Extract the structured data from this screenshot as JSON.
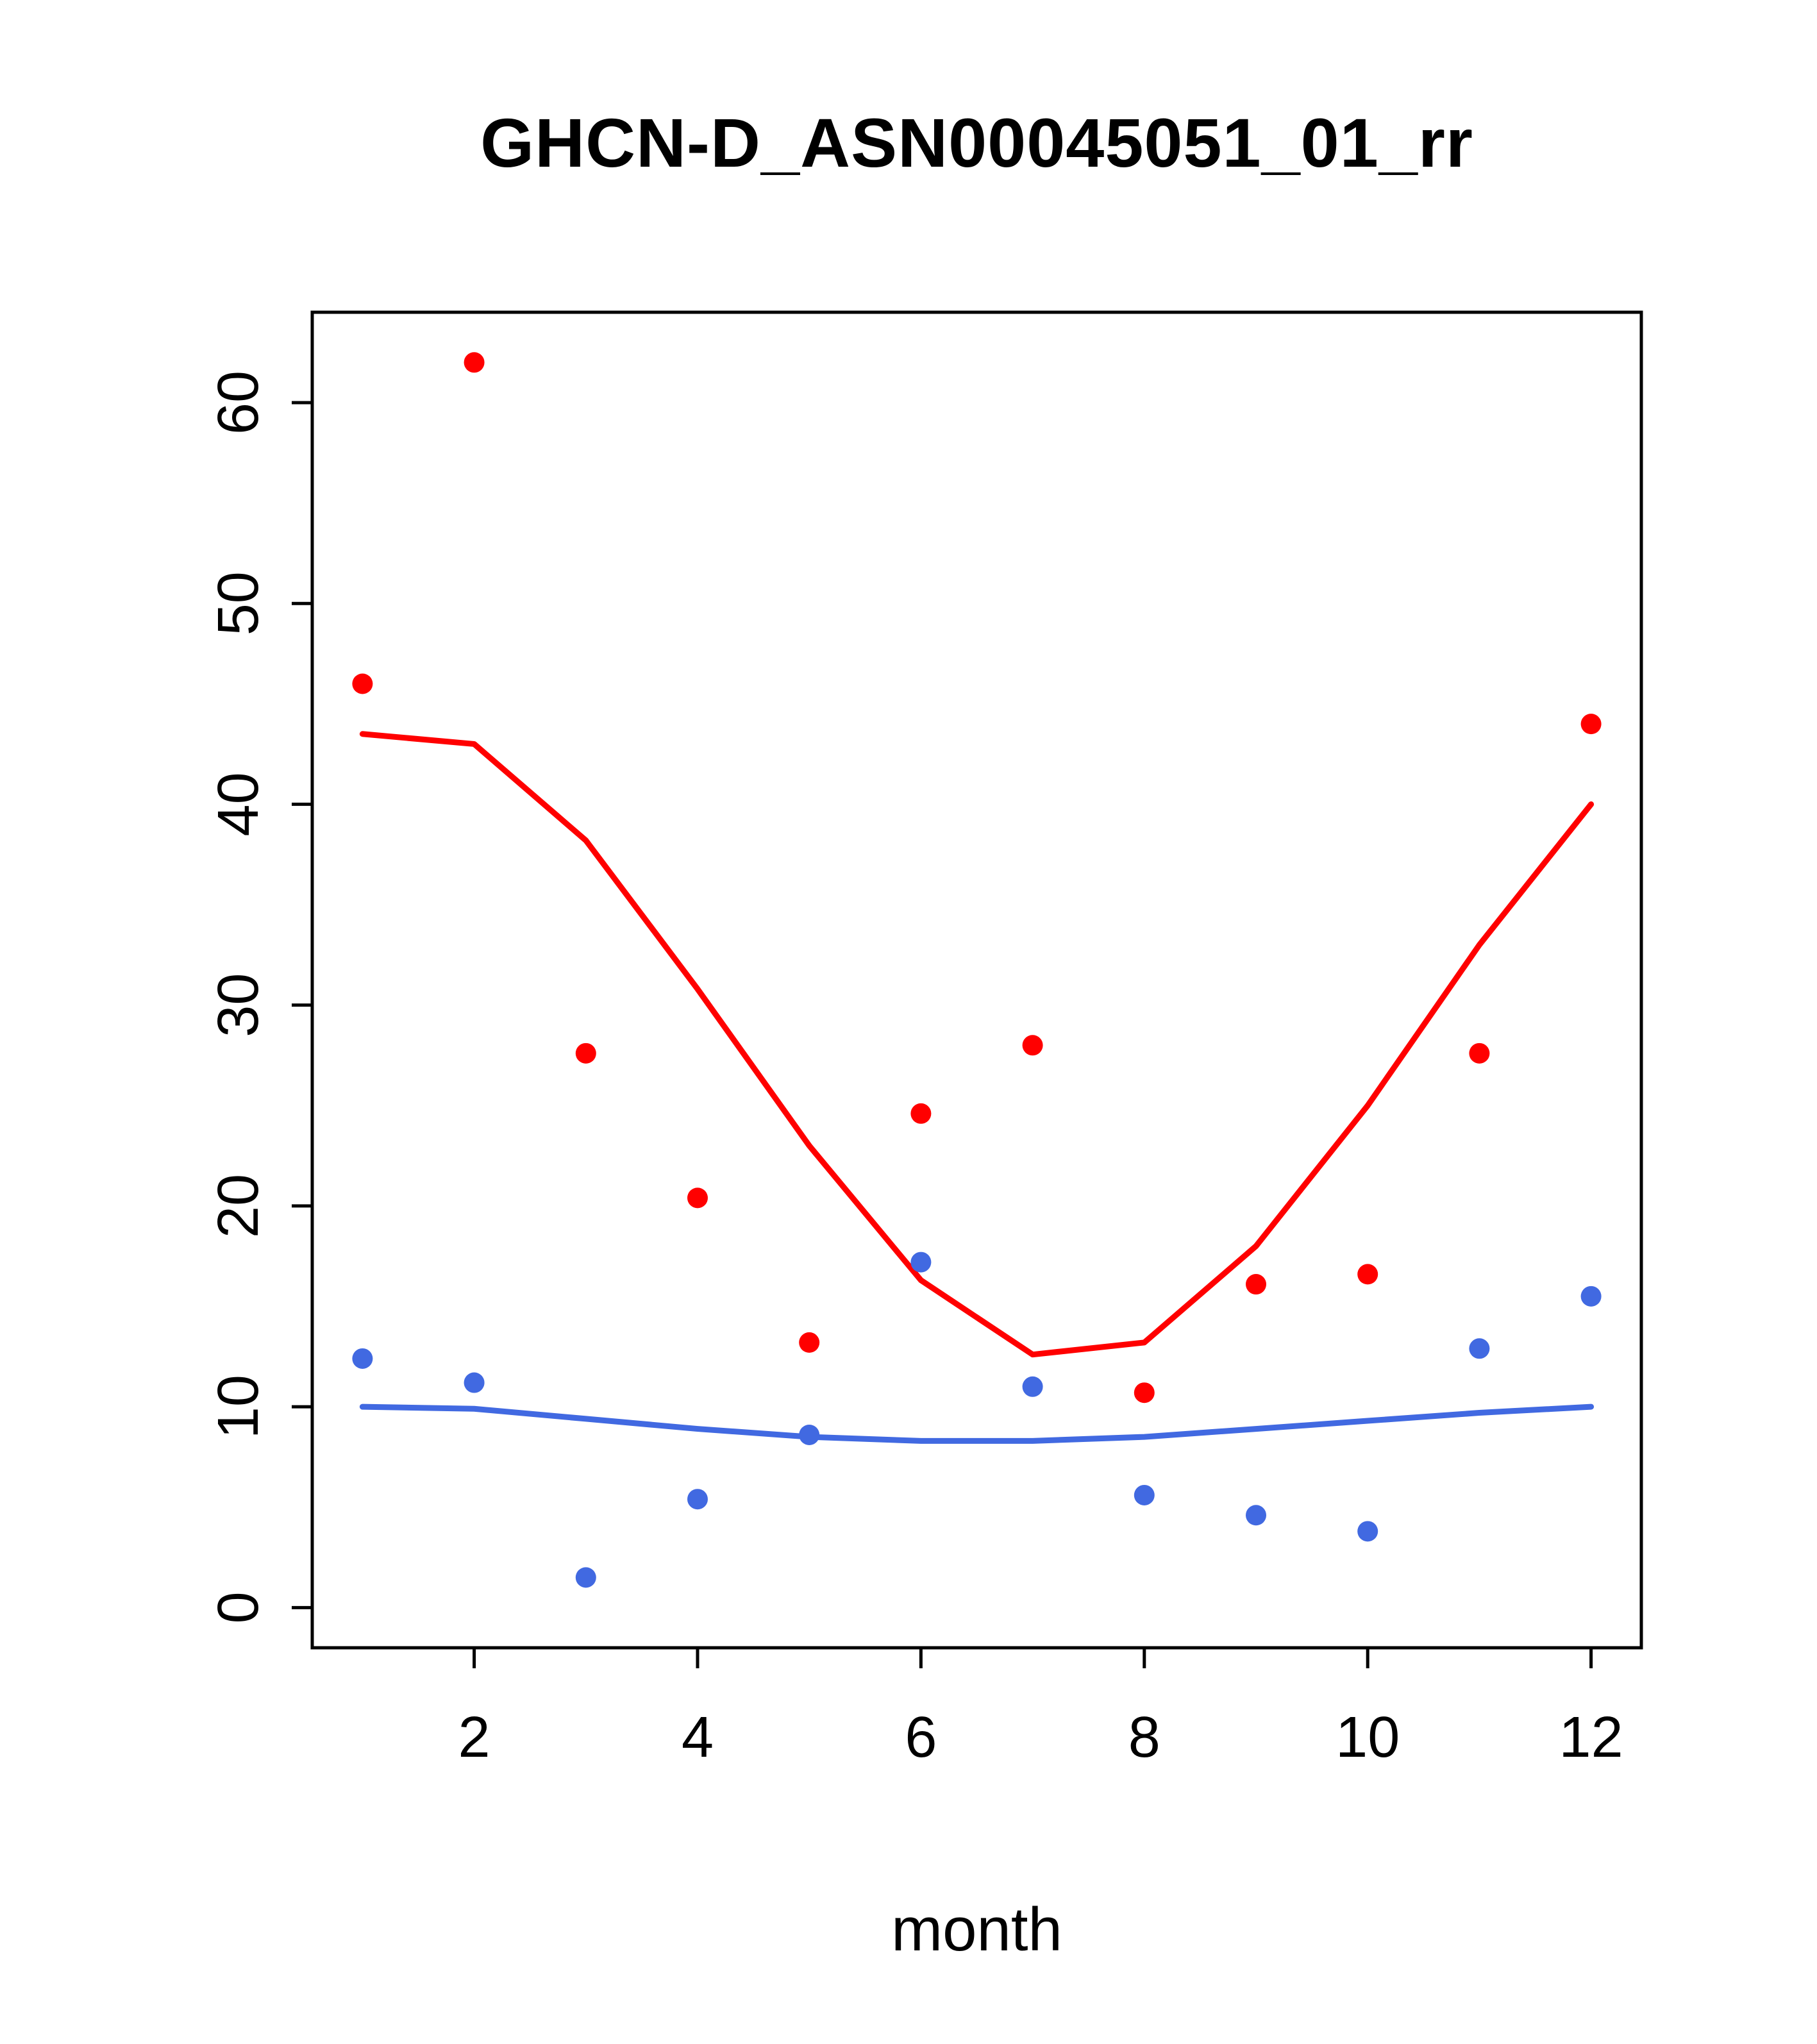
{
  "chart_data": {
    "type": "scatter",
    "title": "GHCN-D_ASN00045051_01_rr",
    "xlabel": "month",
    "ylabel": "",
    "x": [
      1,
      2,
      3,
      4,
      5,
      6,
      7,
      8,
      9,
      10,
      11,
      12
    ],
    "xlim": [
      0.55,
      12.45
    ],
    "ylim": [
      -2,
      64.5
    ],
    "xticks": [
      2,
      4,
      6,
      8,
      10,
      12
    ],
    "yticks": [
      0,
      10,
      20,
      30,
      40,
      50,
      60
    ],
    "grid": false,
    "legend_position": "none",
    "colors": {
      "red": "#ff0000",
      "blue": "#4169e1"
    },
    "series": [
      {
        "name": "line-red",
        "kind": "line",
        "color": "#ff0000",
        "values": [
          43.5,
          43.0,
          38.2,
          30.8,
          23.0,
          16.3,
          12.6,
          13.2,
          18.0,
          25.0,
          33.0,
          40.0
        ]
      },
      {
        "name": "line-blue",
        "kind": "line",
        "color": "#4169e1",
        "values": [
          10.0,
          9.9,
          9.4,
          8.9,
          8.5,
          8.3,
          8.3,
          8.5,
          8.9,
          9.3,
          9.7,
          10.0
        ]
      },
      {
        "name": "points-red",
        "kind": "points",
        "color": "#ff0000",
        "values": [
          46.0,
          62.0,
          27.6,
          20.4,
          13.2,
          24.6,
          28.0,
          10.7,
          16.1,
          16.6,
          27.6,
          44.0
        ]
      },
      {
        "name": "points-blue",
        "kind": "points",
        "color": "#4169e1",
        "values": [
          12.4,
          11.2,
          1.5,
          5.4,
          8.6,
          17.2,
          11.0,
          5.6,
          4.6,
          3.8,
          12.9,
          15.5
        ]
      }
    ]
  }
}
